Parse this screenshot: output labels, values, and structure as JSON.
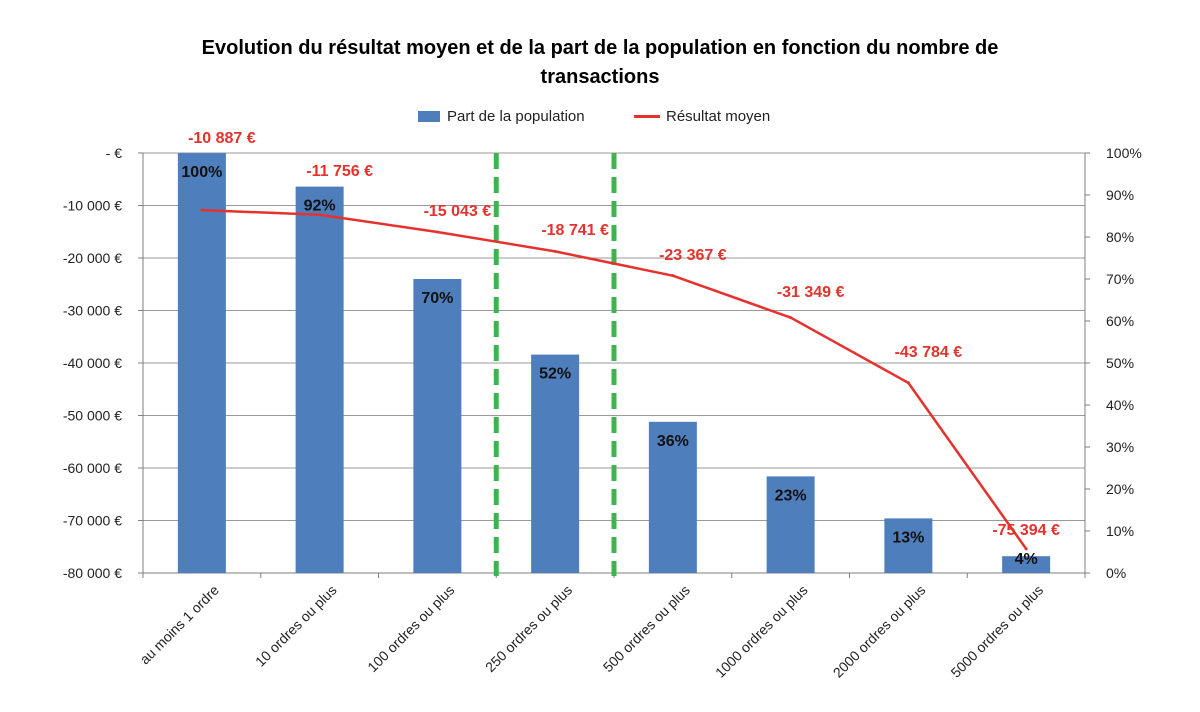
{
  "chart_data": {
    "type": "bar+line",
    "title": "Evolution du résultat moyen et de la part de la population en fonction du nombre de transactions",
    "categories": [
      "au moins 1 ordre",
      "10 ordres ou plus",
      "100 ordres ou plus",
      "250 ordres ou plus",
      "500 ordres ou plus",
      "1000 ordres ou plus",
      "2000 ordres ou plus",
      "5000 ordres ou plus"
    ],
    "series": [
      {
        "name": "Part de la population",
        "kind": "bar",
        "axis": "left",
        "values": [
          100,
          92,
          70,
          52,
          36,
          23,
          13,
          4
        ],
        "labels": [
          "100%",
          "92%",
          "70%",
          "52%",
          "36%",
          "23%",
          "13%",
          "4%"
        ],
        "color": "#4F7EBD"
      },
      {
        "name": "Résultat moyen",
        "kind": "line",
        "axis": "right",
        "values": [
          -10887,
          -11756,
          -15043,
          -18741,
          -23367,
          -31349,
          -43784,
          -75394
        ],
        "labels": [
          "-10 887 €",
          "-11 756 €",
          "-15 043 €",
          "-18 741 €",
          "-23 367 €",
          "-31 349 €",
          "-43 784 €",
          "-75 394 €"
        ],
        "color": "#E5322D"
      }
    ],
    "y_left": {
      "ticks": [
        "-  €",
        "-10 000 €",
        "-20 000 €",
        "-30 000 €",
        "-40 000 €",
        "-50 000 €",
        "-60 000 €",
        "-70 000 €",
        "-80 000 €"
      ],
      "range": [
        -80000,
        0
      ]
    },
    "y_right": {
      "ticks": [
        "100%",
        "90%",
        "80%",
        "70%",
        "60%",
        "50%",
        "40%",
        "30%",
        "20%",
        "10%",
        "0%"
      ],
      "range": [
        0,
        100
      ]
    },
    "vertical_markers": {
      "style": "dashed",
      "color": "#3DB54A",
      "between_categories": [
        [
          2,
          3
        ],
        [
          3,
          4
        ]
      ]
    },
    "grid": true,
    "legend_position": "top"
  }
}
